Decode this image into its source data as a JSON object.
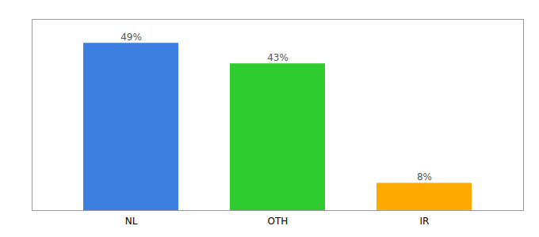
{
  "chart_data": {
    "type": "bar",
    "categories": [
      "NL",
      "OTH",
      "IR"
    ],
    "values": [
      49,
      43,
      8
    ],
    "value_labels": [
      "49%",
      "43%",
      "8%"
    ],
    "colors": [
      "#3d7fe0",
      "#2ecc2e",
      "#ffaa00"
    ],
    "ylim": [
      0,
      56
    ],
    "data_labels": true,
    "tick_labels": "x"
  }
}
